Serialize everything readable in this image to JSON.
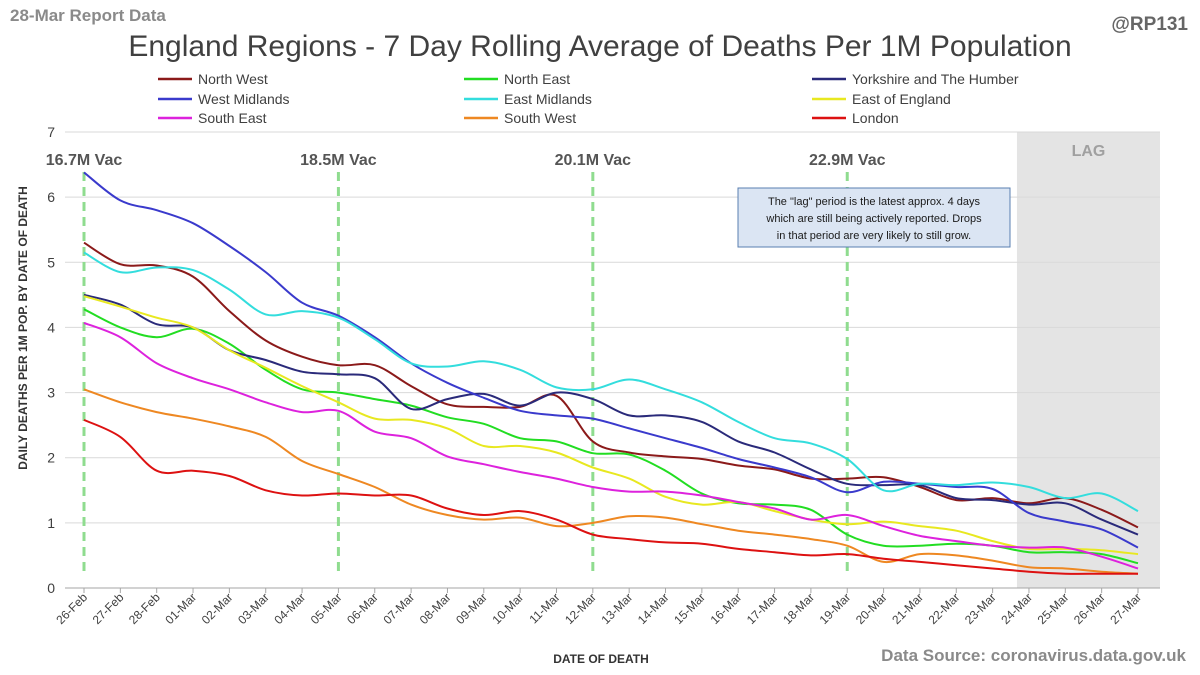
{
  "header": {
    "report_label": "28-Mar Report Data",
    "handle": "@RP131",
    "source": "Data Source: coronavirus.data.gov.uk"
  },
  "chart_data": {
    "type": "line",
    "title": "England Regions - 7 Day Rolling Average of Deaths Per 1M Population",
    "xlabel": "DATE OF DEATH",
    "ylabel": "DAILY DEATHS PER 1M POP. BY DATE OF DEATH",
    "ylim": [
      0,
      7
    ],
    "yticks": [
      0,
      1,
      2,
      3,
      4,
      5,
      6,
      7
    ],
    "grid": true,
    "legend_position": "top",
    "categories": [
      "26-Feb",
      "27-Feb",
      "28-Feb",
      "01-Mar",
      "02-Mar",
      "03-Mar",
      "04-Mar",
      "05-Mar",
      "06-Mar",
      "07-Mar",
      "08-Mar",
      "09-Mar",
      "10-Mar",
      "11-Mar",
      "12-Mar",
      "13-Mar",
      "14-Mar",
      "15-Mar",
      "16-Mar",
      "17-Mar",
      "18-Mar",
      "19-Mar",
      "20-Mar",
      "21-Mar",
      "22-Mar",
      "23-Mar",
      "24-Mar",
      "25-Mar",
      "26-Mar",
      "27-Mar"
    ],
    "series": [
      {
        "name": "North West",
        "color": "#8b1a1a",
        "values": [
          5.3,
          4.97,
          4.95,
          4.78,
          4.25,
          3.8,
          3.55,
          3.42,
          3.42,
          3.1,
          2.82,
          2.78,
          2.78,
          2.95,
          2.25,
          2.08,
          2.02,
          1.98,
          1.88,
          1.82,
          1.68,
          1.68,
          1.7,
          1.55,
          1.35,
          1.38,
          1.3,
          1.38,
          1.2,
          0.93
        ]
      },
      {
        "name": "North East",
        "color": "#22dd22",
        "values": [
          4.28,
          4.0,
          3.85,
          3.98,
          3.75,
          3.35,
          3.05,
          3.0,
          2.9,
          2.8,
          2.62,
          2.52,
          2.3,
          2.25,
          2.07,
          2.05,
          1.8,
          1.45,
          1.3,
          1.28,
          1.2,
          0.82,
          0.65,
          0.65,
          0.68,
          0.65,
          0.55,
          0.55,
          0.52,
          0.38
        ]
      },
      {
        "name": "Yorkshire and The Humber",
        "color": "#2a2a7a",
        "values": [
          4.5,
          4.35,
          4.05,
          4.0,
          3.65,
          3.5,
          3.32,
          3.28,
          3.22,
          2.75,
          2.9,
          2.98,
          2.8,
          3.0,
          2.9,
          2.65,
          2.65,
          2.55,
          2.25,
          2.08,
          1.82,
          1.6,
          1.58,
          1.58,
          1.38,
          1.35,
          1.28,
          1.3,
          1.05,
          0.82
        ]
      },
      {
        "name": "West Midlands",
        "color": "#3a3acc",
        "values": [
          6.38,
          5.95,
          5.8,
          5.6,
          5.25,
          4.85,
          4.38,
          4.18,
          3.85,
          3.45,
          3.15,
          2.92,
          2.72,
          2.65,
          2.6,
          2.45,
          2.3,
          2.15,
          1.98,
          1.85,
          1.7,
          1.47,
          1.63,
          1.6,
          1.55,
          1.52,
          1.15,
          1.02,
          0.9,
          0.62
        ]
      },
      {
        "name": "East Midlands",
        "color": "#33dddd",
        "values": [
          5.15,
          4.85,
          4.92,
          4.88,
          4.58,
          4.2,
          4.25,
          4.15,
          3.82,
          3.45,
          3.4,
          3.48,
          3.35,
          3.08,
          3.05,
          3.2,
          3.05,
          2.85,
          2.55,
          2.3,
          2.22,
          1.98,
          1.5,
          1.6,
          1.58,
          1.62,
          1.55,
          1.38,
          1.45,
          1.18
        ]
      },
      {
        "name": "East of England",
        "color": "#e8e820",
        "values": [
          4.48,
          4.32,
          4.15,
          4.0,
          3.65,
          3.38,
          3.1,
          2.85,
          2.6,
          2.58,
          2.45,
          2.18,
          2.18,
          2.08,
          1.85,
          1.68,
          1.4,
          1.28,
          1.32,
          1.18,
          1.05,
          0.98,
          1.02,
          0.95,
          0.88,
          0.72,
          0.6,
          0.6,
          0.58,
          0.52
        ]
      },
      {
        "name": "South East",
        "color": "#dd22dd",
        "values": [
          4.07,
          3.85,
          3.45,
          3.22,
          3.05,
          2.85,
          2.7,
          2.72,
          2.4,
          2.3,
          2.02,
          1.9,
          1.78,
          1.68,
          1.55,
          1.48,
          1.48,
          1.42,
          1.32,
          1.22,
          1.05,
          1.12,
          0.95,
          0.8,
          0.72,
          0.65,
          0.62,
          0.62,
          0.48,
          0.3
        ]
      },
      {
        "name": "South West",
        "color": "#ee8822",
        "values": [
          3.05,
          2.85,
          2.7,
          2.6,
          2.48,
          2.32,
          1.95,
          1.75,
          1.55,
          1.28,
          1.12,
          1.05,
          1.08,
          0.95,
          1.0,
          1.1,
          1.08,
          0.98,
          0.88,
          0.82,
          0.75,
          0.65,
          0.4,
          0.52,
          0.5,
          0.42,
          0.32,
          0.3,
          0.25,
          0.22
        ]
      },
      {
        "name": "London",
        "color": "#dd1111",
        "values": [
          2.58,
          2.32,
          1.8,
          1.8,
          1.72,
          1.5,
          1.42,
          1.45,
          1.42,
          1.42,
          1.22,
          1.12,
          1.18,
          1.05,
          0.82,
          0.75,
          0.7,
          0.68,
          0.6,
          0.55,
          0.5,
          0.52,
          0.45,
          0.4,
          0.35,
          0.3,
          0.25,
          0.22,
          0.22,
          0.22
        ]
      }
    ],
    "vaccination_markers": [
      {
        "label": "16.7M Vac",
        "date": "26-Feb"
      },
      {
        "label": "18.5M Vac",
        "date": "05-Mar"
      },
      {
        "label": "20.1M Vac",
        "date": "12-Mar"
      },
      {
        "label": "22.9M Vac",
        "date": "19-Mar"
      }
    ],
    "lag_region": {
      "label": "LAG",
      "start": "24-Mar",
      "end": "27-Mar"
    },
    "annotation": {
      "lines": [
        "The \"lag\" period is the latest approx. 4 days",
        "which are still being actively reported. Drops",
        "in that period are very likely to still grow."
      ]
    }
  }
}
